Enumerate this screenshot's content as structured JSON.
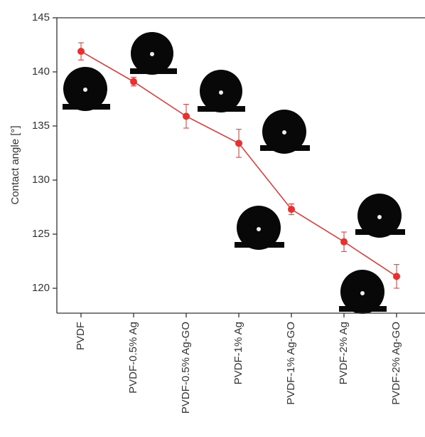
{
  "chart_data": {
    "type": "line",
    "y_label": "Contact angle [°]",
    "categories": [
      "PVDF",
      "PVDF-0.5% Ag",
      "PVDF-0.5% Ag-GO",
      "PVDF-1% Ag",
      "PVDF-1% Ag-GO",
      "PVDF-2% Ag",
      "PVDF-2% Ag-GO"
    ],
    "series": [
      {
        "color": "#e8312f",
        "values": [
          141.9,
          139.1,
          135.9,
          133.4,
          127.3,
          124.3,
          121.1
        ],
        "errors": [
          0.8,
          0.4,
          1.1,
          1.3,
          0.5,
          0.9,
          1.1
        ]
      }
    ],
    "ylim": [
      117.7,
      145
    ],
    "yticks": [
      120,
      125,
      130,
      135,
      140,
      145
    ]
  }
}
